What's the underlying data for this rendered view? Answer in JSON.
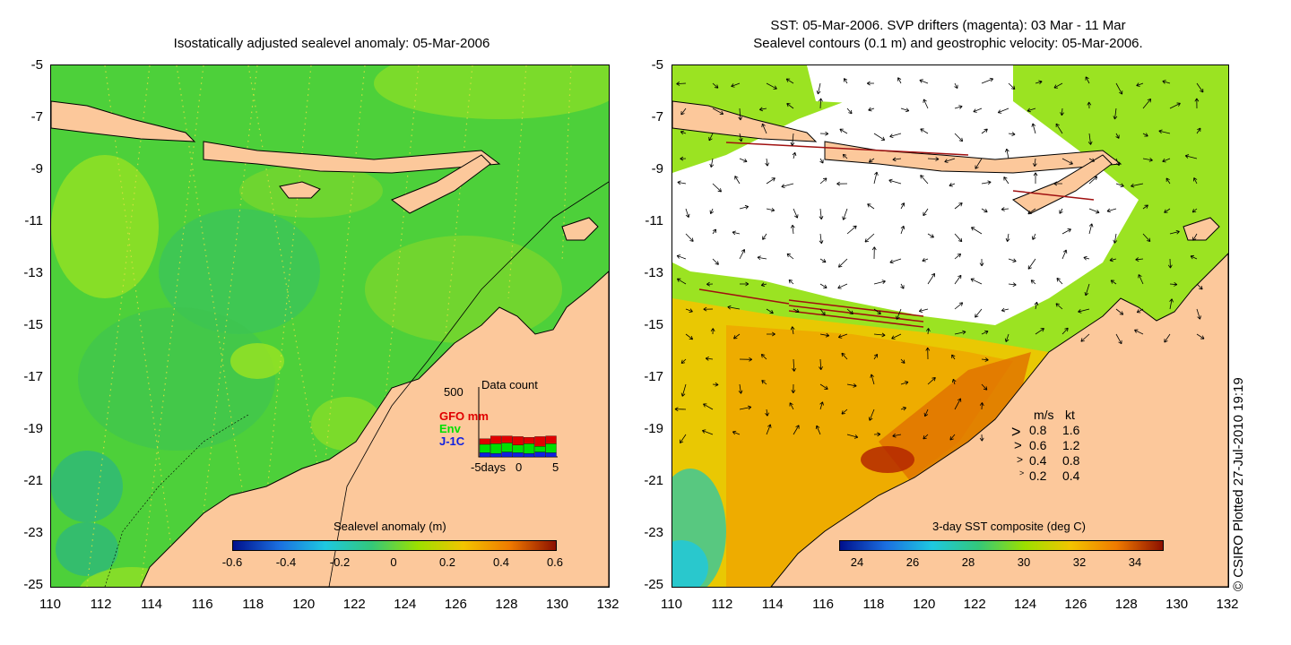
{
  "left_panel": {
    "title": "Isostatically adjusted sealevel anomaly: 05-Mar-2006",
    "colorbar": {
      "label": "Sealevel anomaly (m)",
      "ticks": [
        "-0.6",
        "-0.4",
        "-0.2",
        "0",
        "0.2",
        "0.4",
        "0.6"
      ],
      "colors": [
        "#00108c",
        "#1b6fe0",
        "#1ec8e0",
        "#33c87a",
        "#9be000",
        "#f2c400",
        "#f07a00",
        "#8c1000"
      ]
    },
    "data_count": {
      "title": "Data count",
      "ymax_label": "500",
      "series": [
        {
          "name": "GFO mm",
          "color": "#e00000",
          "values": [
            40,
            55,
            50,
            60,
            45,
            70,
            55
          ]
        },
        {
          "name": "Env",
          "color": "#00e000",
          "values": [
            60,
            70,
            65,
            55,
            70,
            40,
            65
          ]
        },
        {
          "name": "J-1C",
          "color": "#1020e0",
          "values": [
            30,
            25,
            35,
            30,
            25,
            35,
            30
          ]
        }
      ],
      "xticks": [
        "-5days",
        "0",
        "5"
      ]
    }
  },
  "right_panel": {
    "title_line1": "SST: 05-Mar-2006. SVP drifters (magenta): 03 Mar - 11 Mar",
    "title_line2": "Sealevel contours (0.1 m) and geostrophic velocity: 05-Mar-2006.",
    "colorbar": {
      "label": "3-day SST composite (deg C)",
      "ticks": [
        "24",
        "26",
        "28",
        "30",
        "32",
        "34"
      ],
      "colors": [
        "#00108c",
        "#1b6fe0",
        "#1ec8e0",
        "#33c87a",
        "#9be000",
        "#f2c400",
        "#f07a00",
        "#8c1000"
      ]
    },
    "velocity_legend": {
      "header_ms": "m/s",
      "header_kt": "kt",
      "rows": [
        {
          "ms": "0.8",
          "kt": "1.6"
        },
        {
          "ms": "0.6",
          "kt": "1.2"
        },
        {
          "ms": "0.4",
          "kt": "0.8"
        },
        {
          "ms": "0.2",
          "kt": "0.4"
        }
      ]
    }
  },
  "axes": {
    "y_ticks": [
      "-5",
      "-7",
      "-9",
      "-11",
      "-13",
      "-15",
      "-17",
      "-19",
      "-21",
      "-23",
      "-25"
    ],
    "x_ticks": [
      "110",
      "112",
      "114",
      "116",
      "118",
      "120",
      "122",
      "124",
      "126",
      "128",
      "130",
      "132"
    ]
  },
  "copyright": "© CSIRO Plotted 27-Jul-2010 19:19",
  "colors": {
    "land": "#fcc89b",
    "ocean_green": "#5fd832",
    "ocean_light": "#8ce022",
    "cloud_white": "#ffffff"
  }
}
